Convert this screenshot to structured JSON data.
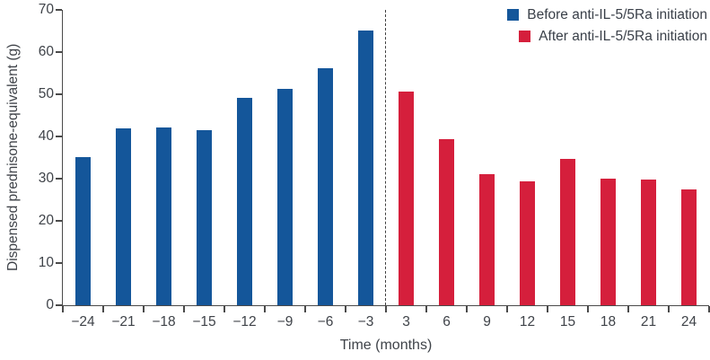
{
  "chart_data": {
    "type": "bar",
    "title": "",
    "xlabel": "Time (months)",
    "ylabel": "Dispensed prednisone-equivalent (g)",
    "categories": [
      "−24",
      "−21",
      "−18",
      "−15",
      "−12",
      "−9",
      "−6",
      "−3",
      "3",
      "6",
      "9",
      "12",
      "15",
      "18",
      "21",
      "24"
    ],
    "series": [
      {
        "name": "Before anti-IL-5/5Ra initiation",
        "key": "before",
        "color": "#14569a",
        "values": [
          35.2,
          41.9,
          42.2,
          41.4,
          49.1,
          51.3,
          56.2,
          65.2,
          null,
          null,
          null,
          null,
          null,
          null,
          null,
          null
        ]
      },
      {
        "name": "After anti-IL-5/5Ra initiation",
        "key": "after",
        "color": "#d51f3c",
        "values": [
          null,
          null,
          null,
          null,
          null,
          null,
          null,
          null,
          50.6,
          39.4,
          31.0,
          29.4,
          34.6,
          30.1,
          29.8,
          27.4
        ]
      }
    ],
    "ylim": [
      0,
      70
    ],
    "yticks": [
      0,
      10,
      20,
      30,
      40,
      50,
      60,
      70
    ],
    "separator": {
      "after_category_index": 7,
      "style": "dashed",
      "color": "#404040"
    },
    "legend_position": "top-right",
    "grid": false
  },
  "colors": {
    "axis": "#4a4a4a",
    "text": "#3f4349",
    "background": "#ffffff"
  }
}
